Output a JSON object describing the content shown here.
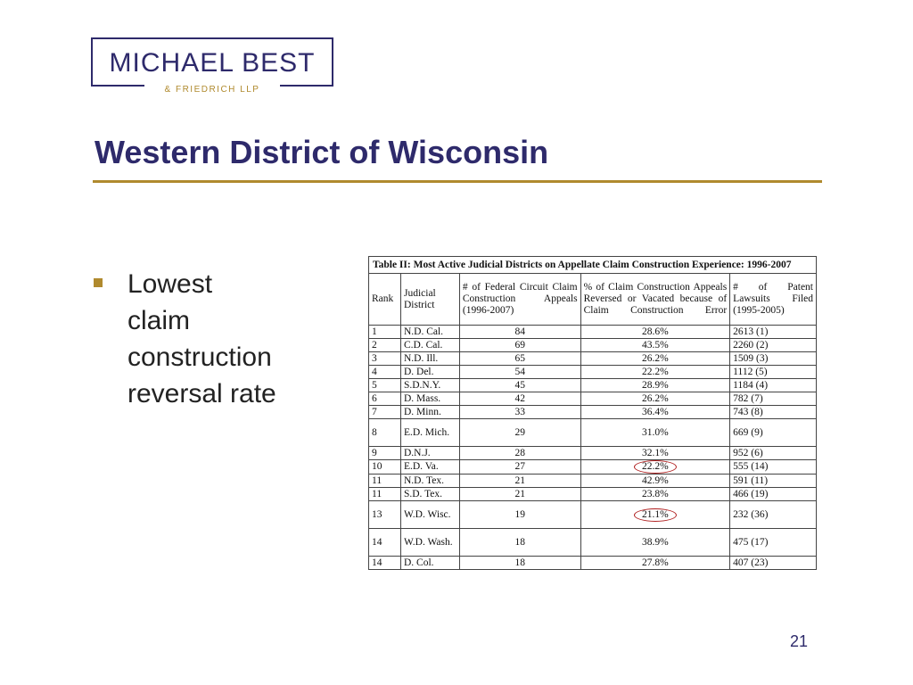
{
  "logo": {
    "main": "MICHAEL BEST",
    "sub": "& FRIEDRICH LLP",
    "color": "#2e2a6b",
    "accent": "#b08a2e"
  },
  "slide": {
    "title": "Western District of Wisconsin",
    "bullet_lines": [
      "Lowest",
      "claim",
      "construction",
      "reversal rate"
    ],
    "page_number": "21"
  },
  "table": {
    "caption": "Table II: Most Active Judicial Districts on Appellate Claim Construction Experience: 1996-2007",
    "headers": {
      "rank": "Rank",
      "district": "Judicial District",
      "appeals": "# of Federal Circuit Claim Construction Appeals (1996-2007)",
      "reversal": "% of Claim Construction Appeals Reversed or Vacated because of Claim Construction Error",
      "lawsuits": "# of Patent Lawsuits Filed (1995-2005)"
    },
    "rows": [
      {
        "rank": "1",
        "district": "N.D. Cal.",
        "appeals": "84",
        "reversal": "28.6%",
        "lawsuits": "2613 (1)"
      },
      {
        "rank": "2",
        "district": "C.D. Cal.",
        "appeals": "69",
        "reversal": "43.5%",
        "lawsuits": "2260 (2)"
      },
      {
        "rank": "3",
        "district": "N.D. Ill.",
        "appeals": "65",
        "reversal": "26.2%",
        "lawsuits": "1509 (3)"
      },
      {
        "rank": "4",
        "district": "D. Del.",
        "appeals": "54",
        "reversal": "22.2%",
        "lawsuits": "1112 (5)"
      },
      {
        "rank": "5",
        "district": "S.D.N.Y.",
        "appeals": "45",
        "reversal": "28.9%",
        "lawsuits": "1184 (4)"
      },
      {
        "rank": "6",
        "district": "D. Mass.",
        "appeals": "42",
        "reversal": "26.2%",
        "lawsuits": "782 (7)"
      },
      {
        "rank": "7",
        "district": "D. Minn.",
        "appeals": "33",
        "reversal": "36.4%",
        "lawsuits": "743 (8)"
      },
      {
        "rank": "8",
        "district": "E.D. Mich.",
        "appeals": "29",
        "reversal": "31.0%",
        "lawsuits": "669 (9)"
      },
      {
        "rank": "9",
        "district": "D.N.J.",
        "appeals": "28",
        "reversal": "32.1%",
        "lawsuits": "952 (6)"
      },
      {
        "rank": "10",
        "district": "E.D. Va.",
        "appeals": "27",
        "reversal": "22.2%",
        "lawsuits": "555 (14)"
      },
      {
        "rank": "11",
        "district": "N.D. Tex.",
        "appeals": "21",
        "reversal": "42.9%",
        "lawsuits": "591 (11)"
      },
      {
        "rank": "11",
        "district": "S.D. Tex.",
        "appeals": "21",
        "reversal": "23.8%",
        "lawsuits": "466 (19)"
      },
      {
        "rank": "13",
        "district": "W.D. Wisc.",
        "appeals": "19",
        "reversal": "21.1%",
        "lawsuits": "232 (36)"
      },
      {
        "rank": "14",
        "district": "W.D. Wash.",
        "appeals": "18",
        "reversal": "38.9%",
        "lawsuits": "475 (17)"
      },
      {
        "rank": "14",
        "district": "D. Col.",
        "appeals": "18",
        "reversal": "27.8%",
        "lawsuits": "407 (23)"
      }
    ],
    "circled_reversal_rows": [
      9,
      12
    ],
    "circle_color": "#b02020"
  }
}
